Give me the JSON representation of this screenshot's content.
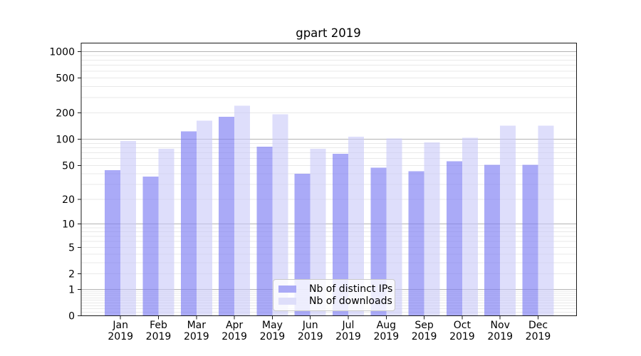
{
  "chart_data": {
    "type": "bar",
    "title": "gpart 2019",
    "x_tick_labels": [
      [
        "Jan",
        "2019"
      ],
      [
        "Feb",
        "2019"
      ],
      [
        "Mar",
        "2019"
      ],
      [
        "Apr",
        "2019"
      ],
      [
        "May",
        "2019"
      ],
      [
        "Jun",
        "2019"
      ],
      [
        "Jul",
        "2019"
      ],
      [
        "Aug",
        "2019"
      ],
      [
        "Sep",
        "2019"
      ],
      [
        "Oct",
        "2019"
      ],
      [
        "Nov",
        "2019"
      ],
      [
        "Dec",
        "2019"
      ]
    ],
    "series": [
      {
        "name": "Nb of distinct IPs",
        "fill": "#7d7df2",
        "fill_opacity": 0.65,
        "legend_color": "#aaaaf6",
        "values": [
          44,
          37,
          123,
          181,
          82,
          40,
          68,
          47,
          43,
          56,
          51,
          51
        ]
      },
      {
        "name": "Nb of downloads",
        "fill": "#c8c8f8",
        "fill_opacity": 0.6,
        "legend_color": "#dedefa",
        "values": [
          96,
          78,
          163,
          241,
          194,
          78,
          107,
          102,
          92,
          104,
          143,
          143
        ]
      }
    ],
    "y_axis": {
      "scale": "log1p",
      "tick_values": [
        0,
        1,
        2,
        5,
        10,
        20,
        50,
        100,
        200,
        500,
        1000
      ],
      "minor_gridline_values": [
        0.1,
        0.2,
        0.3,
        0.4,
        0.5,
        0.6,
        0.7,
        0.8,
        0.9,
        2,
        3,
        4,
        5,
        6,
        7,
        8,
        9,
        20,
        30,
        40,
        50,
        60,
        70,
        80,
        90,
        200,
        300,
        400,
        500,
        600,
        700,
        800,
        900
      ],
      "range": [
        0,
        1300
      ]
    },
    "grid": {
      "major_color": "#b4b4b4",
      "minor_color": "#e9e9e9",
      "vertical_gridlines": false
    },
    "legend": {
      "position": "lower center"
    },
    "axis_color": "#1a1a1a",
    "text_color": "#000000"
  }
}
